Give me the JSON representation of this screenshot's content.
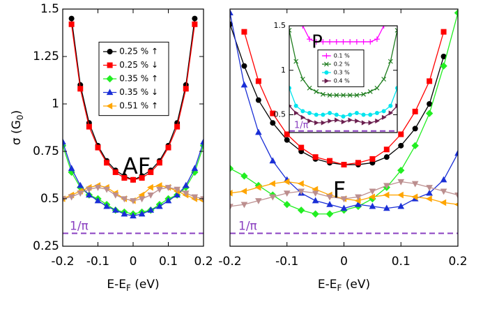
{
  "chart_data": [
    {
      "type": "line",
      "xlim": [
        -0.2,
        0.2
      ],
      "ylim": [
        0.25,
        1.5
      ],
      "xticks": [
        -0.2,
        -0.1,
        0,
        0.1,
        0.2
      ],
      "yticks": [
        0.25,
        0.5,
        0.75,
        1,
        1.25,
        1.5
      ],
      "xlabel": {
        "text": "E-E",
        "sub": "F",
        "tail": " (eV)"
      },
      "ylabel": {
        "text": "σ (G",
        "sub": "0",
        "tail": ")"
      },
      "annotations": [
        "AF"
      ],
      "legend": true,
      "reference_line": {
        "value": 0.318,
        "label": "1/π",
        "color": "#8a3fc0"
      },
      "x": [
        -0.2,
        -0.175,
        -0.15,
        -0.125,
        -0.1,
        -0.075,
        -0.05,
        -0.025,
        0,
        0.025,
        0.05,
        0.075,
        0.1,
        0.125,
        0.15,
        0.175,
        0.2
      ],
      "series": [
        {
          "name": "0.25 % ↑",
          "color": "#000000",
          "marker": "circle",
          "values": [
            null,
            1.45,
            1.1,
            0.9,
            0.78,
            0.7,
            0.65,
            0.62,
            0.6,
            0.62,
            0.65,
            0.7,
            0.78,
            0.9,
            1.1,
            1.45,
            null
          ]
        },
        {
          "name": "0.25 % ↓",
          "color": "#ff0000",
          "marker": "square",
          "values": [
            null,
            1.42,
            1.08,
            0.88,
            0.77,
            0.69,
            0.64,
            0.61,
            0.6,
            0.61,
            0.64,
            0.69,
            0.77,
            0.88,
            1.08,
            1.42,
            null
          ]
        },
        {
          "name": "0.35 % ↑",
          "color": "#22ee22",
          "marker": "diamond",
          "values": [
            0.78,
            0.64,
            0.56,
            0.52,
            0.5,
            0.47,
            0.44,
            0.43,
            0.42,
            0.43,
            0.44,
            0.47,
            0.5,
            0.52,
            0.56,
            0.64,
            0.78
          ]
        },
        {
          "name": "0.35 % ↓",
          "color": "#1a2fd6",
          "marker": "triangle-up",
          "values": [
            0.8,
            0.66,
            0.57,
            0.52,
            0.49,
            0.46,
            0.44,
            0.42,
            0.41,
            0.42,
            0.44,
            0.46,
            0.49,
            0.52,
            0.57,
            0.66,
            0.8
          ]
        },
        {
          "name": "0.51 % ↑",
          "color": "#ffa500",
          "marker": "triangle-left",
          "values": [
            0.5,
            0.52,
            0.54,
            0.56,
            0.57,
            0.56,
            0.53,
            0.5,
            0.49,
            0.52,
            0.56,
            0.57,
            0.56,
            0.54,
            0.52,
            0.5,
            0.49
          ]
        },
        {
          "color": "#bc8f8f",
          "marker": "triangle-down",
          "values": [
            0.5,
            0.51,
            0.53,
            0.55,
            0.56,
            0.55,
            0.52,
            0.5,
            0.49,
            0.5,
            0.52,
            0.55,
            0.56,
            0.55,
            0.53,
            0.51,
            0.5
          ]
        }
      ]
    },
    {
      "type": "line",
      "xlim": [
        -0.2,
        0.2
      ],
      "ylim": [
        0.25,
        1.5
      ],
      "xticks": [
        -0.2,
        -0.1,
        0,
        0.1,
        0.2
      ],
      "xlabel": {
        "text": "E-E",
        "sub": "F",
        "tail": " (eV)"
      },
      "annotations": [
        "F"
      ],
      "legend": false,
      "reference_line": {
        "value": 0.318,
        "label": "1/π",
        "color": "#8a3fc0"
      },
      "x": [
        -0.2,
        -0.175,
        -0.15,
        -0.125,
        -0.1,
        -0.075,
        -0.05,
        -0.025,
        0,
        0.025,
        0.05,
        0.075,
        0.1,
        0.125,
        0.15,
        0.175,
        0.2
      ],
      "series": [
        {
          "color": "#000000",
          "marker": "circle",
          "values": [
            1.42,
            1.2,
            1.02,
            0.9,
            0.81,
            0.75,
            0.71,
            0.69,
            0.68,
            0.68,
            0.69,
            0.72,
            0.78,
            0.87,
            1.0,
            1.25,
            null
          ]
        },
        {
          "color": "#ff0000",
          "marker": "square",
          "values": [
            null,
            1.38,
            1.12,
            0.95,
            0.84,
            0.77,
            0.72,
            0.7,
            0.68,
            0.69,
            0.71,
            0.76,
            0.84,
            0.96,
            1.12,
            1.38,
            null
          ]
        },
        {
          "color": "#22ee22",
          "marker": "diamond",
          "values": [
            0.66,
            0.62,
            0.57,
            0.52,
            0.47,
            0.44,
            0.42,
            0.42,
            0.44,
            0.46,
            0.5,
            0.56,
            0.65,
            0.78,
            0.95,
            1.2,
            1.48
          ]
        },
        {
          "color": "#1a2fd6",
          "marker": "triangle-up",
          "values": [
            1.48,
            1.1,
            0.85,
            0.7,
            0.6,
            0.53,
            0.49,
            0.47,
            0.45,
            0.47,
            0.46,
            0.45,
            0.46,
            0.5,
            0.53,
            0.6,
            0.74
          ]
        },
        {
          "color": "#ffa500",
          "marker": "triangle-left",
          "values": [
            0.53,
            0.54,
            0.56,
            0.58,
            0.59,
            0.58,
            0.55,
            0.52,
            0.5,
            0.49,
            0.51,
            0.52,
            0.52,
            0.51,
            0.5,
            0.48,
            0.47
          ]
        },
        {
          "color": "#bc8f8f",
          "marker": "triangle-down",
          "values": [
            0.46,
            0.47,
            0.49,
            0.51,
            0.53,
            0.54,
            0.53,
            0.51,
            0.5,
            0.51,
            0.54,
            0.57,
            0.59,
            0.58,
            0.56,
            0.54,
            0.52
          ]
        }
      ]
    },
    {
      "type": "line",
      "xlim": [
        -0.2,
        0.2
      ],
      "ylim": [
        0.3,
        1.5
      ],
      "yticks": [
        0.5,
        1,
        1.5
      ],
      "annotations": [
        "P"
      ],
      "legend": true,
      "reference_line": {
        "value": 0.318,
        "label": "1/π",
        "color": "#8a3fc0"
      },
      "x": [
        -0.2,
        -0.175,
        -0.15,
        -0.125,
        -0.1,
        -0.075,
        -0.05,
        -0.025,
        0,
        0.025,
        0.05,
        0.075,
        0.1,
        0.125,
        0.15,
        0.175,
        0.2
      ],
      "series": [
        {
          "name": "0.1 %",
          "color": "#ff00ff",
          "marker": "plus",
          "values": [
            null,
            null,
            1.5,
            1.35,
            1.32,
            1.32,
            1.32,
            1.32,
            1.32,
            1.32,
            1.32,
            1.32,
            1.32,
            1.35,
            1.5,
            null,
            null
          ]
        },
        {
          "name": "0.2 %",
          "color": "#1e7d1e",
          "marker": "cross",
          "values": [
            1.45,
            1.1,
            0.9,
            0.8,
            0.76,
            0.73,
            0.72,
            0.72,
            0.72,
            0.72,
            0.72,
            0.73,
            0.76,
            0.8,
            0.9,
            1.1,
            1.45
          ]
        },
        {
          "name": "0.3 %",
          "color": "#00e5ee",
          "marker": "circle",
          "values": [
            0.8,
            0.6,
            0.54,
            0.52,
            0.5,
            0.5,
            0.52,
            0.5,
            0.48,
            0.5,
            0.52,
            0.5,
            0.5,
            0.52,
            0.54,
            0.6,
            0.8
          ]
        },
        {
          "name": "0.4 %",
          "color": "#6b1f4f",
          "marker": "triangle-right",
          "values": [
            0.6,
            0.52,
            0.47,
            0.43,
            0.41,
            0.41,
            0.43,
            0.44,
            0.42,
            0.44,
            0.43,
            0.41,
            0.41,
            0.43,
            0.47,
            0.52,
            0.6
          ]
        }
      ]
    }
  ]
}
